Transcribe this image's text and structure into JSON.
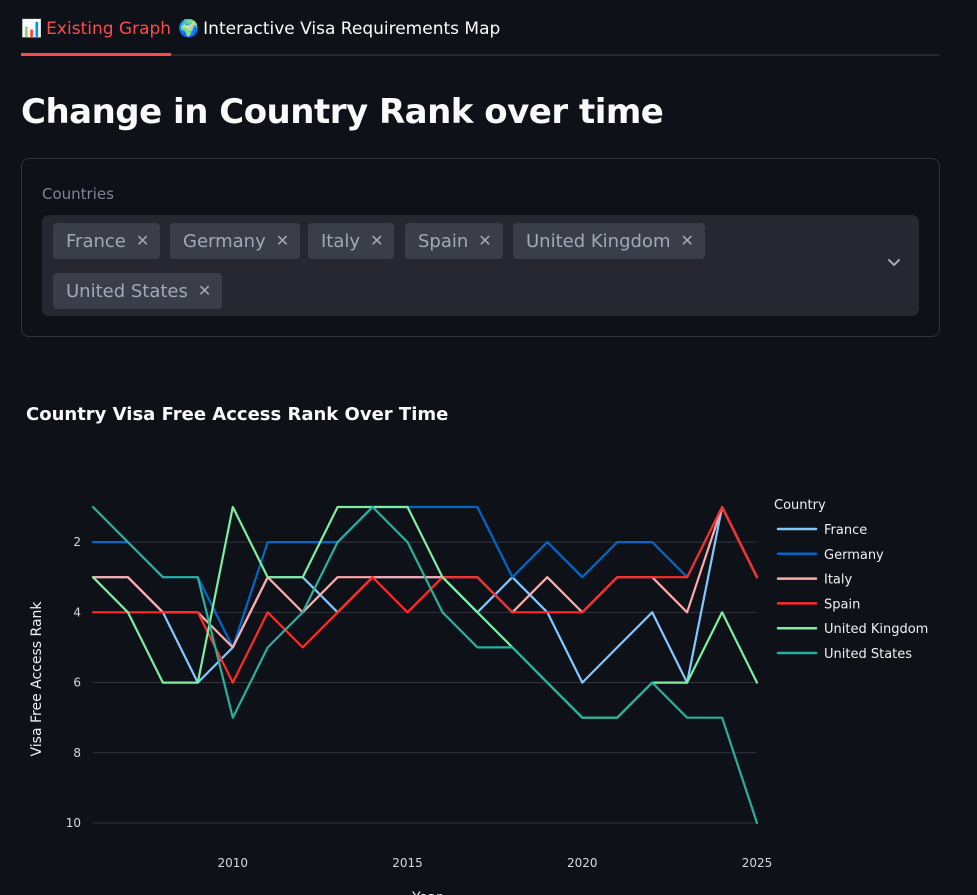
{
  "tabs": [
    {
      "icon": "📊",
      "label": "Existing Graph",
      "active": true
    },
    {
      "icon": "🌍",
      "label": "Interactive Visa Requirements Map",
      "active": false
    }
  ],
  "page_title": "Change in Country Rank over time",
  "countries_filter": {
    "label": "Countries",
    "selected": [
      "France",
      "Germany",
      "Italy",
      "Spain",
      "United Kingdom",
      "United States"
    ],
    "remove_glyph": "✕"
  },
  "chart_data": {
    "type": "line",
    "title": "Country Visa Free Access Rank Over Time",
    "xlabel": "Year",
    "ylabel": "Visa Free Access Rank",
    "legend_title": "Country",
    "legend_position": "right",
    "x": [
      2006,
      2007,
      2008,
      2009,
      2010,
      2011,
      2012,
      2013,
      2014,
      2015,
      2016,
      2017,
      2018,
      2019,
      2020,
      2021,
      2022,
      2023,
      2024,
      2025
    ],
    "xlim": [
      2006,
      2025
    ],
    "xticks": [
      2010,
      2015,
      2020,
      2025
    ],
    "ylim": [
      1,
      10
    ],
    "y_reversed": true,
    "yticks": [
      2,
      4,
      6,
      8,
      10
    ],
    "grid": true,
    "series": [
      {
        "name": "France",
        "color": "#83c9ff",
        "values": [
          3,
          3,
          4,
          6,
          5,
          3,
          3,
          4,
          3,
          3,
          3,
          4,
          3,
          4,
          6,
          5,
          4,
          6,
          1,
          3
        ]
      },
      {
        "name": "Germany",
        "color": "#0068c9",
        "values": [
          2,
          2,
          3,
          3,
          5,
          2,
          2,
          2,
          1,
          1,
          1,
          1,
          3,
          2,
          3,
          2,
          2,
          3,
          1,
          3
        ]
      },
      {
        "name": "Italy",
        "color": "#ffabab",
        "values": [
          3,
          3,
          4,
          4,
          5,
          3,
          4,
          3,
          3,
          3,
          3,
          3,
          4,
          3,
          4,
          3,
          3,
          4,
          1,
          3
        ]
      },
      {
        "name": "Spain",
        "color": "#ff2b2b",
        "values": [
          4,
          4,
          4,
          4,
          6,
          4,
          5,
          4,
          3,
          4,
          3,
          3,
          4,
          4,
          4,
          3,
          3,
          3,
          1,
          3
        ]
      },
      {
        "name": "United Kingdom",
        "color": "#7defa1",
        "values": [
          3,
          4,
          6,
          6,
          1,
          3,
          3,
          1,
          1,
          1,
          3,
          4,
          5,
          6,
          7,
          7,
          6,
          6,
          4,
          6
        ]
      },
      {
        "name": "United States",
        "color": "#29b09d",
        "values": [
          1,
          2,
          3,
          3,
          7,
          5,
          4,
          2,
          1,
          2,
          4,
          5,
          5,
          6,
          7,
          7,
          6,
          7,
          7,
          10
        ]
      }
    ]
  }
}
